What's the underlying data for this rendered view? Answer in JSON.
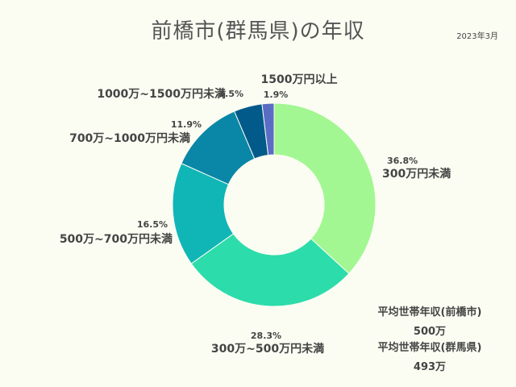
{
  "title": "前橋市(群馬県)の年収",
  "date": "2023年3月",
  "colors": {
    "background": "#fbfdf3",
    "slices": [
      "#a2f792",
      "#2cdcaa",
      "#10b6b6",
      "#0a86a6",
      "#025a8a",
      "#5a6cc4"
    ]
  },
  "chart_data": {
    "type": "pie",
    "donut": true,
    "categories": [
      "300万円未満",
      "300万~500万円未満",
      "500万~700万円未満",
      "700万~1000万円未満",
      "1000万~1500万円未満",
      "1500万円以上"
    ],
    "values": [
      36.8,
      28.3,
      16.5,
      11.9,
      4.5,
      1.9
    ],
    "value_labels": [
      "36.8%",
      "28.3%",
      "16.5%",
      "11.9%",
      "4.5%",
      "1.9%"
    ]
  },
  "averages": {
    "city_label": "平均世帯年収(前橋市)",
    "city_value": "500万",
    "prefecture_label": "平均世帯年収(群馬県)",
    "prefecture_value": "493万"
  }
}
